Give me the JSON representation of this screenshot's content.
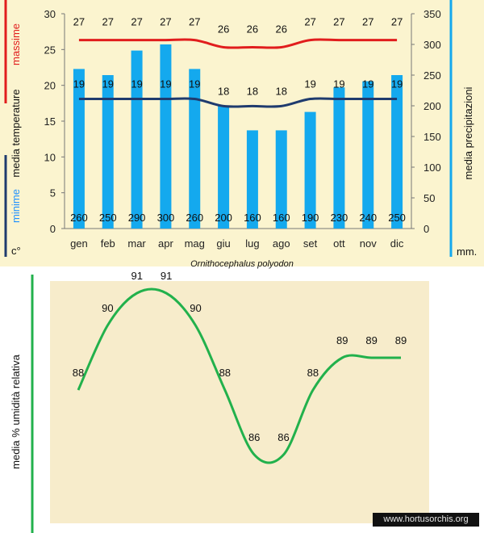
{
  "colors": {
    "background": "#fbf4cf",
    "parchment": "#f7eccb",
    "max_color": "#e11d1d",
    "min_color": "#1f3b6e",
    "bar_color": "#14a9ee",
    "humidity_color": "#22b14c",
    "label_max": "#e11d1d",
    "label_mean": "#111111",
    "label_min": "#1e90ff"
  },
  "species": "Ornithocephalus polyodon",
  "watermark": "www.hortusorchis.org",
  "chart_data": [
    {
      "type": "bar",
      "categories": [
        "gen",
        "feb",
        "mar",
        "apr",
        "mag",
        "giu",
        "lug",
        "ago",
        "set",
        "ott",
        "nov",
        "dic"
      ],
      "series": [
        {
          "name": "media precipitazioni",
          "axis": "right",
          "values": [
            260,
            250,
            290,
            300,
            260,
            200,
            160,
            160,
            190,
            230,
            240,
            250
          ]
        },
        {
          "name": "massime",
          "type": "line",
          "axis": "left",
          "values": [
            27,
            27,
            27,
            27,
            27,
            26,
            26,
            26,
            27,
            27,
            27,
            27
          ]
        },
        {
          "name": "minime",
          "type": "line",
          "axis": "left",
          "values": [
            19,
            19,
            19,
            19,
            19,
            18,
            18,
            18,
            19,
            19,
            19,
            19
          ]
        }
      ],
      "left_axis": {
        "ticks": [
          "0",
          "5",
          "10",
          "15",
          "20",
          "25",
          "30"
        ],
        "ylim": [
          0,
          30
        ],
        "unit": "c°"
      },
      "right_axis": {
        "ticks": [
          "0",
          "50",
          "100",
          "150",
          "200",
          "250",
          "300",
          "350"
        ],
        "ylim": [
          0,
          350
        ],
        "unit": "mm."
      },
      "ylabel_left": {
        "massime": "massime",
        "media_temperature": "media  temperature",
        "minime": "minime"
      },
      "ylabel_right": "media  precipitazioni",
      "grid": false
    },
    {
      "type": "line",
      "categories": [
        "gen",
        "feb",
        "mar",
        "apr",
        "mag",
        "giu",
        "lug",
        "ago",
        "set",
        "ott",
        "nov",
        "dic"
      ],
      "values": [
        88,
        90,
        91,
        91,
        90,
        88,
        86,
        86,
        88,
        89,
        89,
        89
      ],
      "ylabel": "media %  umidità relativa",
      "grid": false
    }
  ]
}
